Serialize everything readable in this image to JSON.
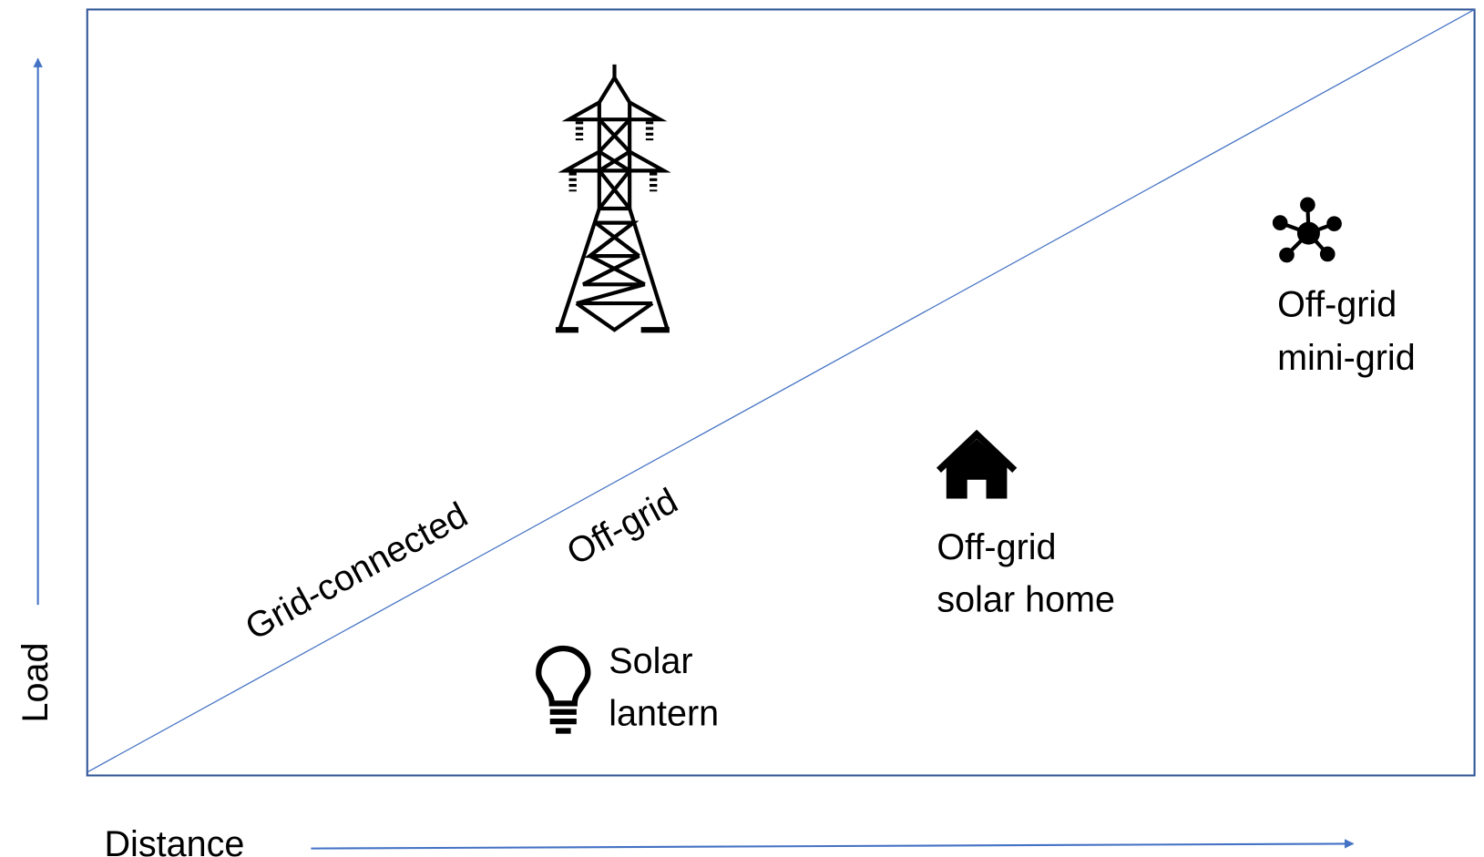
{
  "axes": {
    "y_label": "Load",
    "x_label": "Distance"
  },
  "regions": {
    "upper": "Grid-connected",
    "lower": "Off-grid"
  },
  "items": [
    {
      "lines": [
        "Off-grid",
        "mini-grid"
      ]
    },
    {
      "lines": [
        "Off-grid",
        "solar home"
      ]
    },
    {
      "lines": [
        "Solar",
        "lantern"
      ]
    }
  ]
}
